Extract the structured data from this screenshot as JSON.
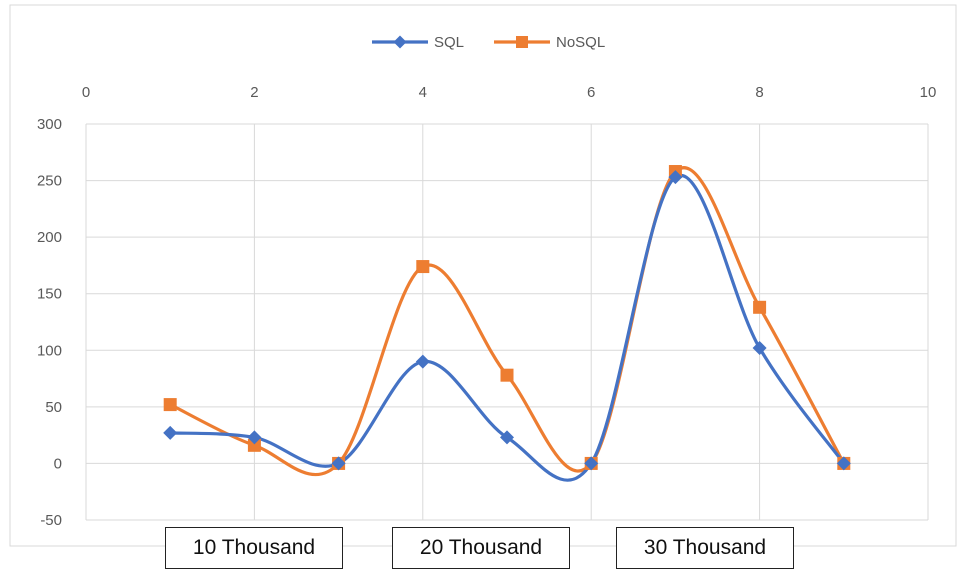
{
  "chart_data": {
    "type": "scatter",
    "style": "smooth-line-with-markers",
    "xlim": [
      0,
      10
    ],
    "ylim": [
      -50,
      300
    ],
    "x_ticks": [
      "0",
      "2",
      "4",
      "6",
      "8",
      "10"
    ],
    "y_ticks": [
      "300",
      "250",
      "200",
      "150",
      "100",
      "50",
      "0",
      "-50"
    ],
    "x_axis_position": "top",
    "grid": true,
    "legend_position": "top-center",
    "series": [
      {
        "name": "SQL",
        "color": "#4472C4",
        "marker": "diamond",
        "x": [
          1,
          2,
          3,
          4,
          5,
          6,
          7,
          8,
          9
        ],
        "y": [
          27,
          23,
          0,
          90,
          23,
          0,
          253,
          102,
          0
        ]
      },
      {
        "name": "NoSQL",
        "color": "#ED7D31",
        "marker": "square",
        "x": [
          1,
          2,
          3,
          4,
          5,
          6,
          7,
          8,
          9
        ],
        "y": [
          52,
          16,
          0,
          174,
          78,
          0,
          258,
          138,
          0
        ]
      }
    ],
    "annotations": [
      "10 Thousand",
      "20 Thousand",
      "30 Thousand"
    ]
  }
}
